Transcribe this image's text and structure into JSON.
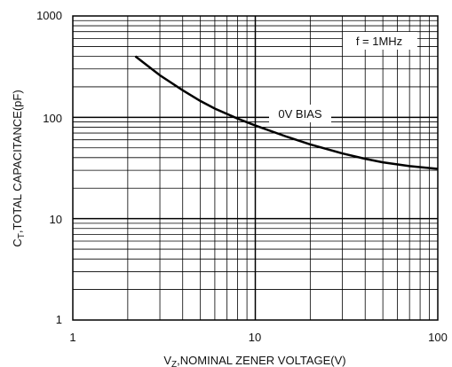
{
  "chart_data": {
    "type": "line",
    "x_scale": "log",
    "y_scale": "log",
    "xlim": [
      1,
      100
    ],
    "ylim": [
      1,
      1000
    ],
    "grid": true,
    "x_ticks": [
      "1",
      "10",
      "100"
    ],
    "y_ticks": [
      "1",
      "10",
      "100",
      "1000"
    ],
    "xlabel": {
      "prefix": "V",
      "sub": "Z",
      "suffix": ",NOMINAL ZENER VOLTAGE(V)"
    },
    "ylabel": {
      "prefix": "C",
      "sub": "T",
      "suffix": ",TOTAL CAPACITANCE(pF)"
    },
    "annotations": [
      "f = 1MHz",
      "0V BIAS"
    ],
    "series": [
      {
        "x": [
          2.2,
          3,
          4,
          5,
          6,
          8,
          10,
          15,
          20,
          30,
          40,
          50,
          70,
          100
        ],
        "y": [
          400,
          260,
          185,
          145,
          122,
          97,
          83,
          64,
          54,
          44,
          39,
          36,
          33,
          31
        ]
      }
    ]
  }
}
